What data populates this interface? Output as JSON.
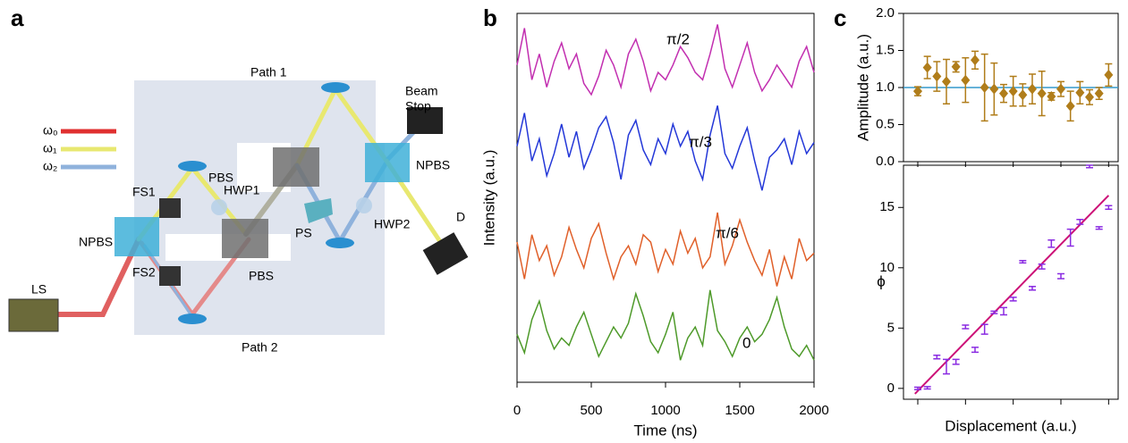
{
  "panels": [
    "a",
    "b",
    "c"
  ],
  "diagram": {
    "path1": "Path 1",
    "path2": "Path 2",
    "beam_stop": [
      "Beam",
      "Stop"
    ],
    "npbs_right": "NPBS",
    "npbs_left": "NPBS",
    "pbs_upper": "PBS",
    "pbs_lower": "PBS",
    "hwp1": "HWP1",
    "hwp2": "HWP2",
    "fs1": "FS1",
    "fs2": "FS2",
    "ps": "PS",
    "d": "D",
    "ls": "LS",
    "legend": [
      "ω₀",
      "ω₁",
      "ω₂"
    ]
  },
  "chart_data": [
    {
      "type": "line",
      "xlabel": "Time (ns)",
      "ylabel": "Intensity (a.u.)",
      "x": [
        0,
        50,
        100,
        150,
        200,
        250,
        300,
        350,
        400,
        450,
        500,
        550,
        600,
        650,
        700,
        750,
        800,
        850,
        900,
        950,
        1000,
        1050,
        1100,
        1150,
        1200,
        1250,
        1300,
        1350,
        1400,
        1450,
        1500,
        1550,
        1600,
        1650,
        1700,
        1750,
        1800,
        1850,
        1900,
        1950,
        2000
      ],
      "xlim": [
        0,
        2000
      ],
      "xticks": [
        0,
        500,
        1000,
        1500,
        2000
      ],
      "ylim": [
        0,
        10
      ],
      "series": [
        {
          "name": "π/2",
          "color": "#c22fb0",
          "values": [
            8.6,
            9.6,
            8.2,
            8.9,
            8.0,
            8.7,
            9.2,
            8.5,
            8.9,
            8.1,
            7.8,
            8.3,
            9.0,
            8.6,
            8.0,
            8.9,
            9.3,
            8.7,
            7.9,
            8.4,
            8.2,
            8.6,
            9.1,
            8.8,
            8.4,
            8.2,
            8.9,
            9.7,
            8.5,
            8.0,
            8.6,
            9.2,
            8.4,
            7.9,
            8.2,
            8.6,
            8.3,
            8.0,
            8.7,
            9.1,
            8.4
          ]
        },
        {
          "name": "π/3",
          "color": "#2438d8",
          "values": [
            6.4,
            7.3,
            6.0,
            6.6,
            5.6,
            6.2,
            7.0,
            6.1,
            6.8,
            5.8,
            6.3,
            6.9,
            7.2,
            6.5,
            5.5,
            6.7,
            7.1,
            6.3,
            5.9,
            6.6,
            6.2,
            7.0,
            6.4,
            6.8,
            6.0,
            5.5,
            6.7,
            7.5,
            6.2,
            5.8,
            6.4,
            6.9,
            6.0,
            5.2,
            6.1,
            6.3,
            6.6,
            5.9,
            6.8,
            6.2,
            6.5
          ]
        },
        {
          "name": "π/6",
          "color": "#e0602a",
          "values": [
            3.8,
            2.8,
            4.0,
            3.3,
            3.7,
            2.9,
            3.4,
            4.2,
            3.6,
            3.1,
            3.9,
            4.3,
            3.5,
            2.8,
            3.4,
            3.7,
            3.2,
            4.0,
            3.8,
            3.0,
            3.6,
            3.2,
            4.1,
            3.5,
            3.9,
            3.1,
            3.4,
            4.6,
            3.2,
            3.7,
            4.4,
            3.8,
            3.3,
            2.9,
            3.6,
            2.6,
            3.4,
            2.8,
            3.9,
            3.3,
            3.5
          ]
        },
        {
          "name": "0",
          "color": "#4e9a2a",
          "values": [
            1.3,
            0.8,
            1.7,
            2.2,
            1.4,
            0.9,
            1.2,
            1.0,
            1.5,
            1.9,
            1.3,
            0.7,
            1.1,
            1.5,
            1.2,
            1.6,
            2.4,
            1.8,
            1.1,
            0.8,
            1.3,
            1.9,
            0.6,
            1.2,
            1.5,
            1.0,
            2.5,
            1.4,
            1.1,
            0.7,
            1.2,
            1.5,
            1.1,
            1.3,
            1.7,
            2.3,
            1.5,
            0.9,
            0.7,
            1.0,
            0.6
          ]
        }
      ]
    },
    {
      "type": "scatter",
      "ylabel": "Amplitude (a.u.)",
      "color": "#b07d1a",
      "reference": 1.0,
      "reference_color": "#3399cc",
      "x": [
        0,
        1,
        2,
        3,
        4,
        5,
        6,
        7,
        8,
        9,
        10,
        11,
        12,
        13,
        14,
        15,
        16,
        17,
        18,
        19,
        20
      ],
      "values": [
        0.95,
        1.27,
        1.15,
        1.08,
        1.28,
        1.1,
        1.37,
        1.0,
        0.98,
        0.92,
        0.95,
        0.9,
        0.98,
        0.92,
        0.88,
        0.98,
        0.75,
        0.93,
        0.87,
        0.92,
        1.17
      ],
      "errors": [
        0.06,
        0.15,
        0.2,
        0.3,
        0.07,
        0.3,
        0.12,
        0.45,
        0.35,
        0.12,
        0.2,
        0.15,
        0.2,
        0.3,
        0.05,
        0.1,
        0.2,
        0.15,
        0.1,
        0.08,
        0.15
      ],
      "xlim": [
        -1.5,
        21
      ],
      "xticks": [
        0,
        5,
        10,
        15,
        20
      ],
      "ylim": [
        0,
        2
      ],
      "yticks": [
        {
          "value": 0,
          "label": "0.0"
        },
        {
          "value": 0.5,
          "label": "0.5"
        },
        {
          "value": 1,
          "label": "1.0"
        },
        {
          "value": 1.5,
          "label": "1.5"
        },
        {
          "value": 2,
          "label": "2.0"
        }
      ]
    },
    {
      "type": "scatter",
      "ylabel": "ϕ",
      "xlabel": "Displacement (a.u.)",
      "color": "#8a2be2",
      "x": [
        0,
        1,
        2,
        3,
        4,
        5,
        6,
        7,
        8,
        9,
        10,
        11,
        12,
        13,
        14,
        15,
        16,
        17,
        18,
        19,
        20
      ],
      "values": [
        0,
        0.05,
        2.6,
        1.8,
        2.2,
        5.1,
        3.2,
        4.9,
        6.3,
        6.4,
        7.4,
        10.5,
        8.3,
        10.1,
        12.0,
        9.3,
        12.5,
        13.8,
        18.4,
        13.3,
        15.0
      ],
      "errors": [
        0.1,
        0.1,
        0.15,
        0.6,
        0.2,
        0.15,
        0.2,
        0.4,
        0.1,
        0.3,
        0.15,
        0.1,
        0.15,
        0.2,
        0.3,
        0.2,
        0.7,
        0.2,
        0.1,
        0.1,
        0.15
      ],
      "fit": {
        "x": [
          -0.3,
          20
        ],
        "y": [
          -0.45,
          16.0
        ],
        "color": "#cc1177"
      },
      "xlim": [
        -1.5,
        21
      ],
      "xticks": [
        0,
        5,
        10,
        15,
        20
      ],
      "ylim": [
        -0.9,
        18.5
      ],
      "yticks": [
        0,
        5,
        10,
        15
      ]
    }
  ]
}
